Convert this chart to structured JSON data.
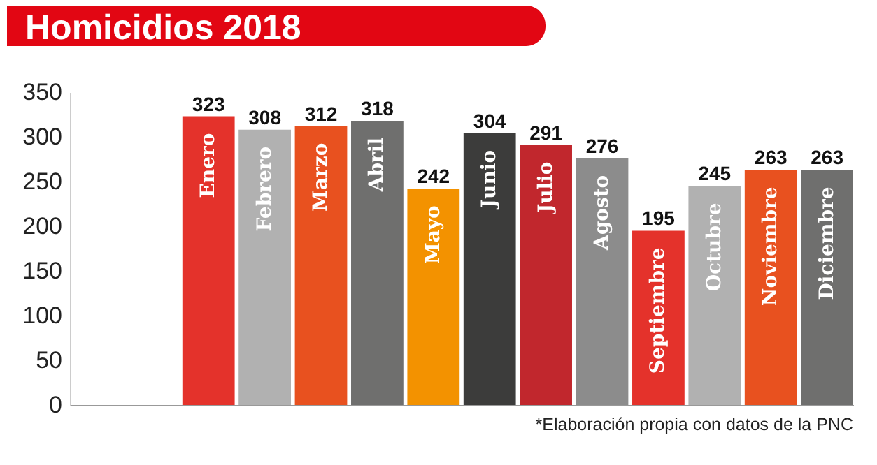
{
  "chart_data": {
    "type": "bar",
    "title": "Homicidios 2018",
    "categories": [
      "Enero",
      "Febrero",
      "Marzo",
      "Abril",
      "Mayo",
      "Junio",
      "Julio",
      "Agosto",
      "Septiembre",
      "Octubre",
      "Noviembre",
      "Diciembre"
    ],
    "values": [
      323,
      308,
      312,
      318,
      242,
      304,
      291,
      276,
      195,
      245,
      263,
      263
    ],
    "colors": [
      "#e4322b",
      "#b1b1b1",
      "#e8511f",
      "#6f6f6e",
      "#f39200",
      "#3c3c3b",
      "#c1272d",
      "#8c8c8c",
      "#e4322b",
      "#b1b1b1",
      "#e8511f",
      "#6f6f6e"
    ],
    "ylim": [
      0,
      350
    ],
    "yticks": [
      0,
      50,
      100,
      150,
      200,
      250,
      300,
      350
    ],
    "data_labels": true,
    "grid": false,
    "legend": false,
    "annotations": [
      "*Elaboración propia con datos de la PNC"
    ]
  }
}
